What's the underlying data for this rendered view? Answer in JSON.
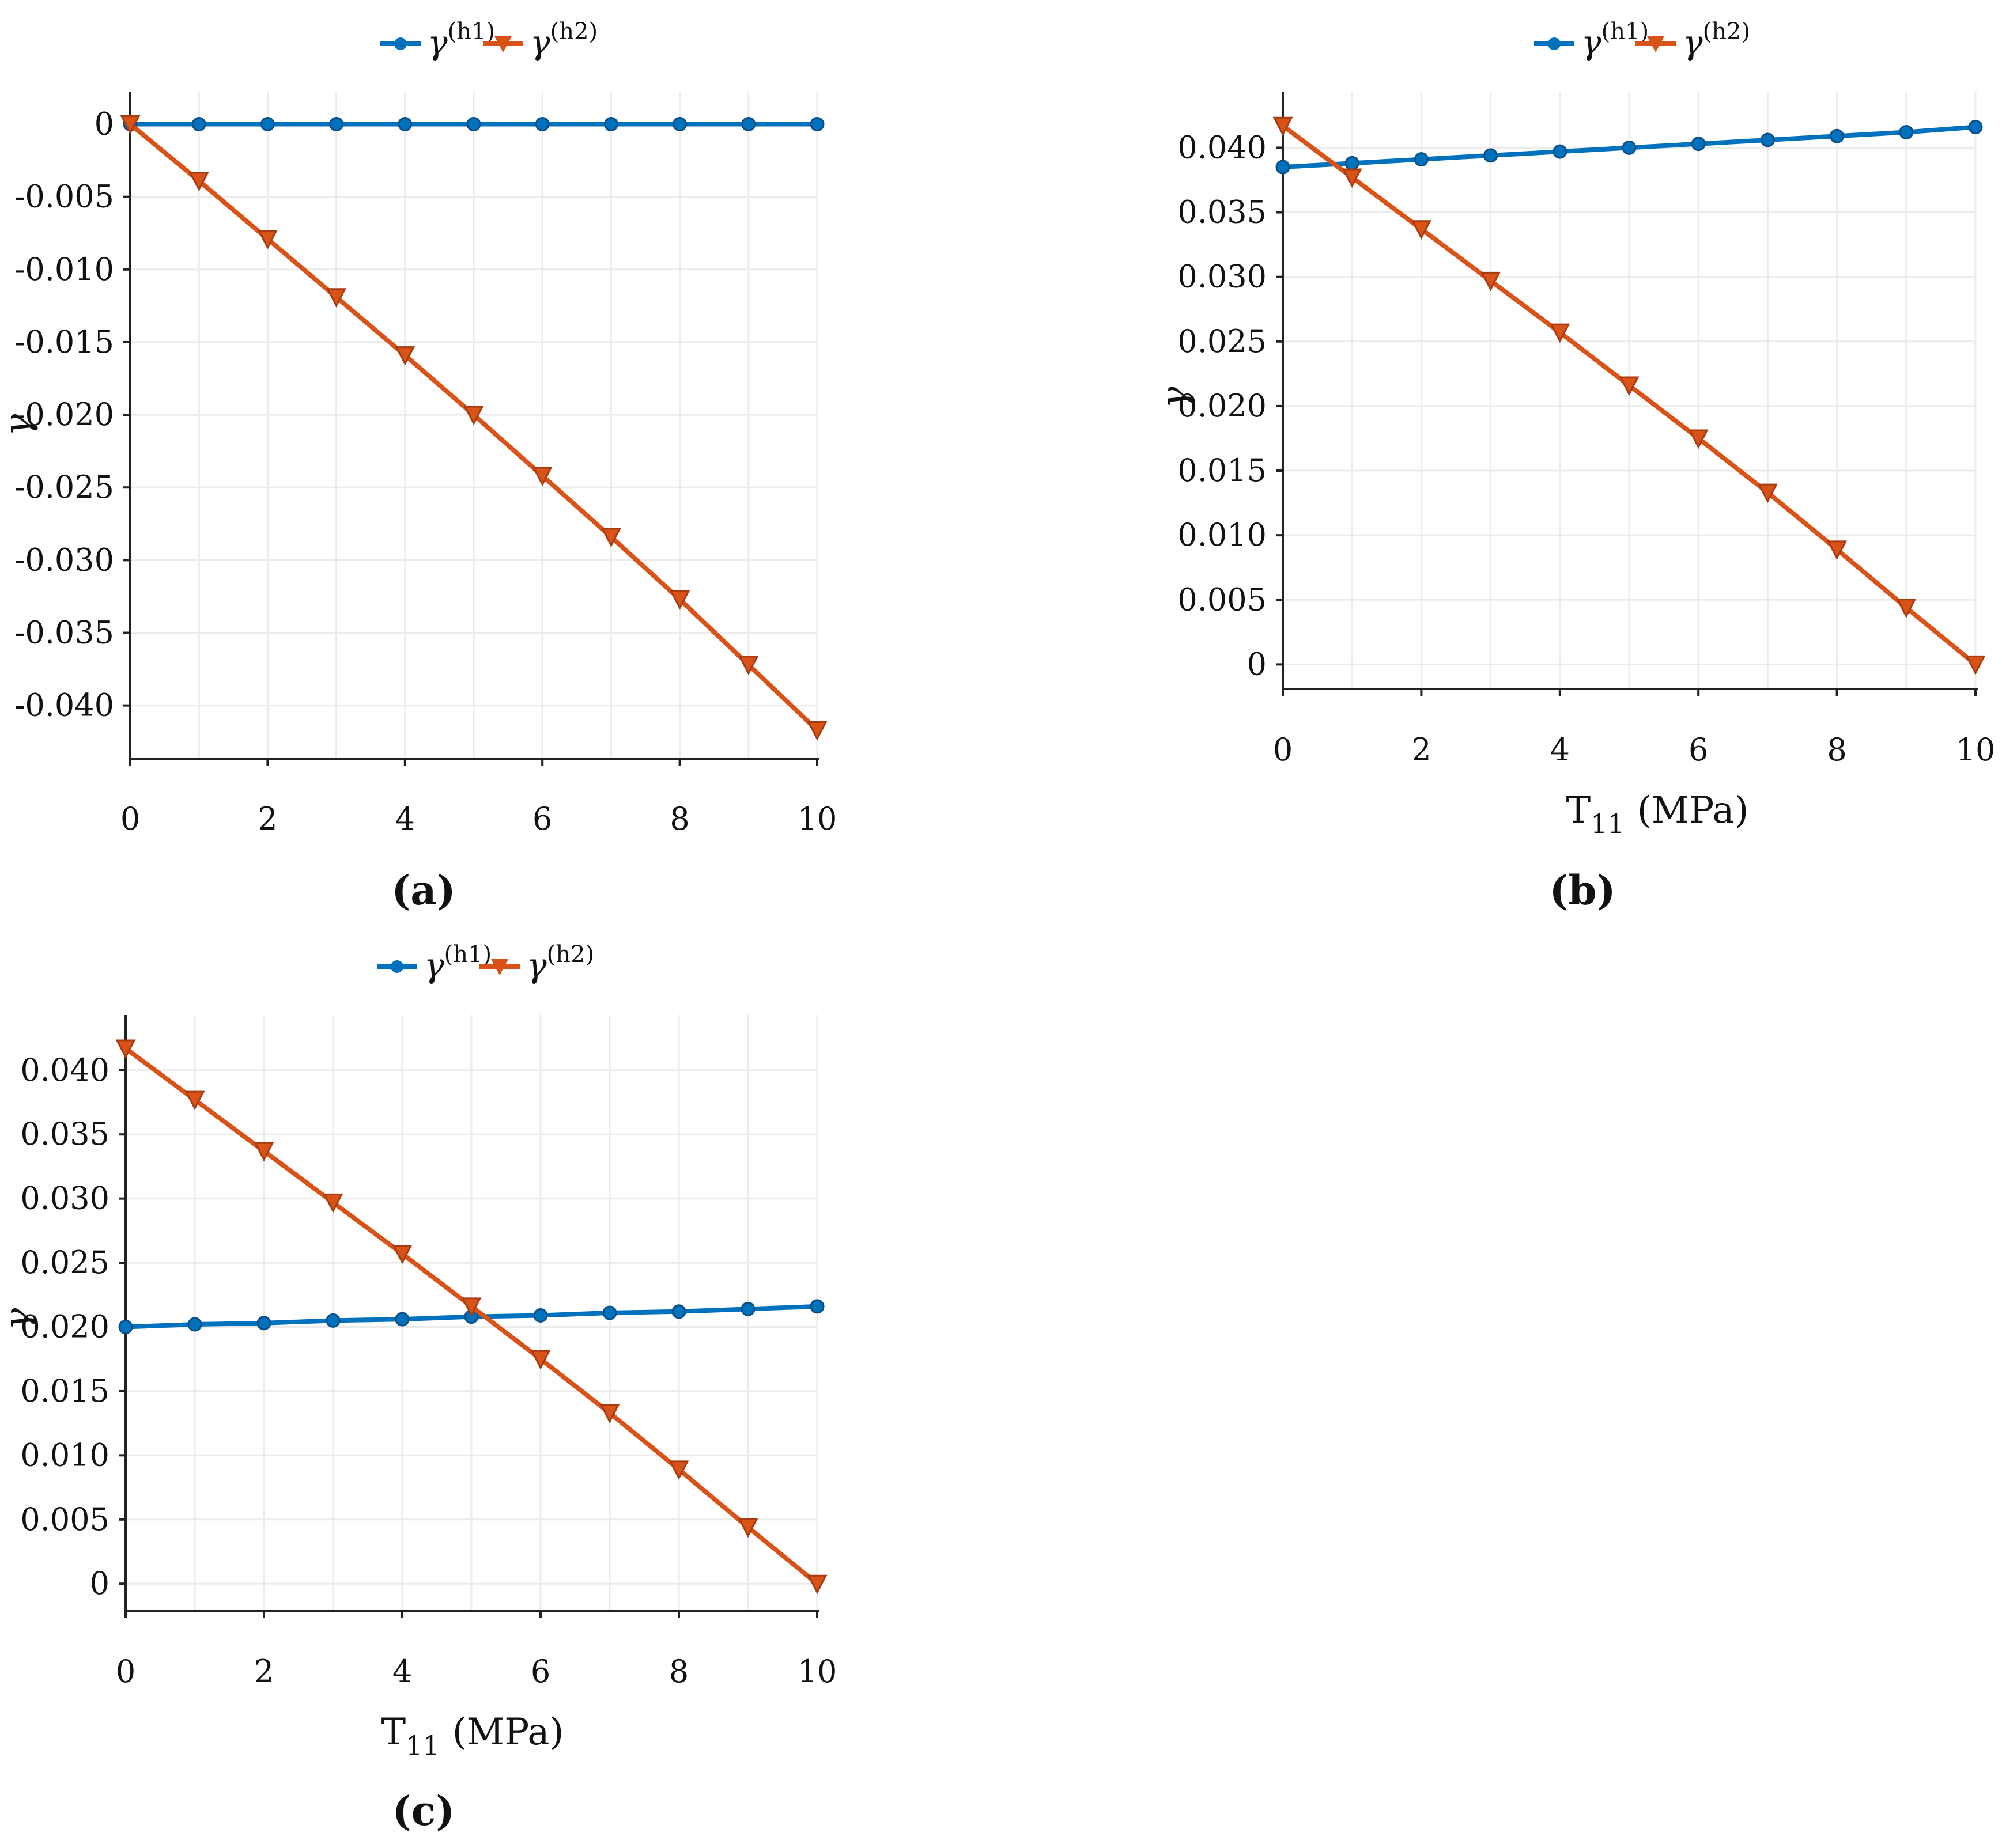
{
  "figure": {
    "panels": [
      "a",
      "b",
      "c"
    ]
  },
  "chart_data": [
    {
      "id": "a",
      "caption": "(a)",
      "type": "line",
      "xlabel": "",
      "ylabel": "γ",
      "x": [
        0,
        1,
        2,
        3,
        4,
        5,
        6,
        7,
        8,
        9,
        10
      ],
      "xticks": [
        0,
        2,
        4,
        6,
        8,
        10
      ],
      "xlim": [
        0,
        10
      ],
      "yticks": [
        0,
        -0.005,
        -0.01,
        -0.015,
        -0.02,
        -0.025,
        -0.03,
        -0.035,
        -0.04
      ],
      "ytick_labels": [
        "0",
        "-0.005",
        "-0.010",
        "-0.015",
        "-0.020",
        "-0.025",
        "-0.030",
        "-0.035",
        "-0.040"
      ],
      "ylim": [
        -0.0437,
        0.0022
      ],
      "grid": true,
      "legend": "top",
      "series": [
        {
          "name": "γ(h1)",
          "label_base": "γ",
          "label_sup": "(h1)",
          "color": "#0072BD",
          "marker": "circle",
          "values": [
            0,
            0,
            0,
            0,
            0,
            0,
            0,
            0,
            0,
            0,
            0
          ]
        },
        {
          "name": "γ(h2)",
          "label_base": "γ",
          "label_sup": "(h2)",
          "color": "#D95319",
          "marker": "triangle-down",
          "values": [
            0,
            -0.0039,
            -0.0079,
            -0.0119,
            -0.0159,
            -0.02,
            -0.0242,
            -0.0284,
            -0.0327,
            -0.0372,
            -0.0417
          ]
        }
      ]
    },
    {
      "id": "b",
      "caption": "(b)",
      "type": "line",
      "xlabel_main": "T",
      "xlabel_sub": "11",
      "xlabel_unit": "(MPa)",
      "ylabel": "γ",
      "x": [
        0,
        1,
        2,
        3,
        4,
        5,
        6,
        7,
        8,
        9,
        10
      ],
      "xticks": [
        0,
        2,
        4,
        6,
        8,
        10
      ],
      "xlim": [
        0,
        10
      ],
      "yticks": [
        0.04,
        0.035,
        0.03,
        0.025,
        0.02,
        0.015,
        0.01,
        0.005,
        0
      ],
      "ytick_labels": [
        "0.040",
        "0.035",
        "0.030",
        "0.025",
        "0.020",
        "0.015",
        "0.010",
        "0.005",
        "0"
      ],
      "ylim": [
        -0.0019,
        0.0443
      ],
      "grid": true,
      "legend": "top",
      "series": [
        {
          "name": "γ(h1)",
          "label_base": "γ",
          "label_sup": "(h1)",
          "color": "#0072BD",
          "marker": "circle",
          "values": [
            0.0385,
            0.0388,
            0.0391,
            0.0394,
            0.0397,
            0.04,
            0.0403,
            0.0406,
            0.0409,
            0.0412,
            0.0416
          ]
        },
        {
          "name": "γ(h2)",
          "label_base": "γ",
          "label_sup": "(h2)",
          "color": "#D95319",
          "marker": "triangle-down",
          "values": [
            0.0417,
            0.0377,
            0.0337,
            0.0297,
            0.0257,
            0.0216,
            0.0175,
            0.0133,
            0.0089,
            0.0044,
            0
          ]
        }
      ]
    },
    {
      "id": "c",
      "caption": "(c)",
      "type": "line",
      "xlabel_main": "T",
      "xlabel_sub": "11",
      "xlabel_unit": "(MPa)",
      "ylabel": "γ",
      "x": [
        0,
        1,
        2,
        3,
        4,
        5,
        6,
        7,
        8,
        9,
        10
      ],
      "xticks": [
        0,
        2,
        4,
        6,
        8,
        10
      ],
      "xlim": [
        0,
        10
      ],
      "yticks": [
        0.04,
        0.035,
        0.03,
        0.025,
        0.02,
        0.015,
        0.01,
        0.005,
        0
      ],
      "ytick_labels": [
        "0.040",
        "0.035",
        "0.030",
        "0.025",
        "0.020",
        "0.015",
        "0.010",
        "0.005",
        "0"
      ],
      "ylim": [
        -0.0021,
        0.0443
      ],
      "grid": true,
      "legend": "top",
      "series": [
        {
          "name": "γ(h1)",
          "label_base": "γ",
          "label_sup": "(h1)",
          "color": "#0072BD",
          "marker": "circle",
          "values": [
            0.02,
            0.0202,
            0.0203,
            0.0205,
            0.0206,
            0.0208,
            0.0209,
            0.0211,
            0.0212,
            0.0214,
            0.0216
          ]
        },
        {
          "name": "γ(h2)",
          "label_base": "γ",
          "label_sup": "(h2)",
          "color": "#D95319",
          "marker": "triangle-down",
          "values": [
            0.0417,
            0.0377,
            0.0337,
            0.0297,
            0.0257,
            0.0216,
            0.0175,
            0.0133,
            0.0089,
            0.0044,
            0
          ]
        }
      ]
    }
  ]
}
